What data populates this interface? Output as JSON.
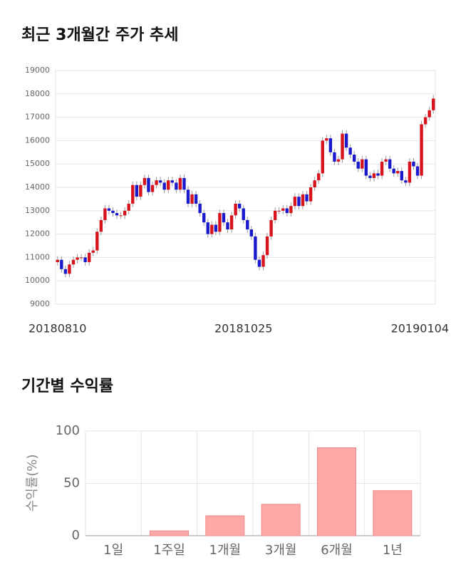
{
  "chart_data": [
    {
      "type": "candlestick",
      "title": "최근 3개월간 주가 추세",
      "categories": [
        "20180810",
        null,
        null,
        null,
        null,
        null,
        null,
        null,
        null,
        null,
        null,
        null,
        null,
        null,
        null,
        null,
        null,
        null,
        null,
        null,
        null,
        null,
        null,
        null,
        null,
        null,
        null,
        null,
        null,
        null,
        null,
        null,
        null,
        null,
        null,
        null,
        null,
        null,
        null,
        null,
        null,
        null,
        null,
        null,
        null,
        null,
        null,
        "20181025",
        null,
        null,
        null,
        null,
        null,
        null,
        null,
        null,
        null,
        null,
        null,
        null,
        null,
        null,
        null,
        null,
        null,
        null,
        null,
        null,
        null,
        null,
        null,
        null,
        null,
        null,
        null,
        null,
        null,
        null,
        null,
        null,
        null,
        null,
        null,
        null,
        null,
        null,
        null,
        null,
        null,
        null,
        null,
        null,
        null,
        null,
        null,
        "20190104"
      ],
      "open": [
        10800,
        10900,
        10500,
        10300,
        10700,
        10900,
        11000,
        11000,
        10800,
        11200,
        11300,
        12100,
        12600,
        13100,
        13000,
        12900,
        12800,
        12800,
        13000,
        13300,
        14100,
        13600,
        14100,
        14400,
        13800,
        14100,
        14300,
        14200,
        13900,
        14300,
        14200,
        13900,
        14400,
        13900,
        13300,
        13700,
        13300,
        12900,
        12500,
        12000,
        12400,
        12100,
        12900,
        12500,
        12200,
        12800,
        13300,
        13100,
        12600,
        12200,
        11900,
        10900,
        10600,
        11100,
        11900,
        12600,
        13000,
        13000,
        13100,
        12900,
        13200,
        13600,
        13200,
        13700,
        13400,
        14000,
        14300,
        14600,
        16000,
        16100,
        15500,
        15100,
        15200,
        16300,
        15700,
        15400,
        15100,
        14800,
        15200,
        14500,
        14400,
        14600,
        14500,
        15100,
        15200,
        14800,
        14600,
        14700,
        14300,
        14200,
        15100,
        14900,
        14500,
        16700,
        17000,
        17300
      ],
      "high": [
        11050,
        11050,
        10650,
        10850,
        11050,
        11150,
        11150,
        11150,
        11350,
        11450,
        12250,
        12750,
        13250,
        13250,
        13150,
        13050,
        12950,
        13150,
        13450,
        14250,
        14250,
        14250,
        14550,
        14550,
        14250,
        14450,
        14450,
        14350,
        14450,
        14450,
        14350,
        14550,
        14550,
        14050,
        13850,
        13850,
        13450,
        13050,
        12650,
        12550,
        12550,
        13050,
        13050,
        12650,
        12950,
        13450,
        13450,
        13250,
        12750,
        12350,
        12050,
        11050,
        11250,
        12050,
        12750,
        13150,
        13150,
        13250,
        13250,
        13350,
        13750,
        13750,
        13850,
        13850,
        14150,
        14450,
        14750,
        16150,
        16250,
        16250,
        15650,
        15350,
        16450,
        16450,
        15850,
        15550,
        15250,
        15350,
        15350,
        14650,
        14750,
        14750,
        15250,
        15350,
        15350,
        14950,
        14850,
        14850,
        14450,
        15250,
        15250,
        15050,
        16850,
        17150,
        17450,
        17950
      ],
      "low": [
        10650,
        10350,
        10150,
        10150,
        10550,
        10750,
        10850,
        10650,
        10650,
        11050,
        11150,
        11950,
        12450,
        12850,
        12750,
        12650,
        12650,
        12650,
        12850,
        13150,
        13450,
        13450,
        13950,
        13650,
        13650,
        13950,
        14050,
        13750,
        13750,
        14050,
        13750,
        13750,
        13750,
        13150,
        13150,
        13150,
        12750,
        12350,
        11850,
        11850,
        11950,
        11950,
        12350,
        12050,
        12050,
        12650,
        12950,
        12450,
        12050,
        11750,
        10750,
        10450,
        10450,
        10950,
        11750,
        12450,
        12850,
        12850,
        12750,
        12750,
        13050,
        13050,
        13050,
        13250,
        13250,
        13850,
        14150,
        14450,
        15850,
        15350,
        14950,
        14950,
        15050,
        15550,
        15250,
        14950,
        14650,
        14650,
        14350,
        14250,
        14250,
        14350,
        14350,
        14950,
        14650,
        14450,
        14450,
        14150,
        14050,
        14050,
        14750,
        14350,
        14350,
        16550,
        16850,
        17150
      ],
      "close": [
        10900,
        10500,
        10300,
        10700,
        10900,
        11000,
        11000,
        10800,
        11200,
        11300,
        12100,
        12600,
        13100,
        13000,
        12900,
        12800,
        12800,
        13000,
        13300,
        14100,
        13600,
        14100,
        14400,
        13800,
        14100,
        14300,
        14200,
        13900,
        14300,
        14200,
        13900,
        14400,
        13900,
        13300,
        13700,
        13300,
        12900,
        12500,
        12000,
        12400,
        12100,
        12900,
        12500,
        12200,
        12800,
        13300,
        13100,
        12600,
        12200,
        11900,
        10900,
        10600,
        11100,
        11900,
        12600,
        13000,
        13000,
        13100,
        12900,
        13200,
        13600,
        13200,
        13700,
        13400,
        14000,
        14300,
        14600,
        16000,
        16100,
        15500,
        15100,
        15200,
        16300,
        15700,
        15400,
        15100,
        14800,
        15200,
        14500,
        14400,
        14600,
        14500,
        15100,
        15200,
        14800,
        14600,
        14700,
        14300,
        14200,
        15100,
        14900,
        14500,
        16700,
        17000,
        17300,
        17800
      ],
      "up_color": "#d7141e",
      "down_color": "#1a1acc",
      "ylim": [
        9000,
        19000
      ],
      "yticks": [
        9000,
        10000,
        11000,
        12000,
        13000,
        14000,
        15000,
        16000,
        17000,
        18000,
        19000
      ],
      "grid": true
    },
    {
      "type": "bar",
      "title": "기간별 수익률",
      "y_label": "수익률(%)",
      "categories": [
        "1일",
        "1주일",
        "1개월",
        "3개월",
        "6개월",
        "1년"
      ],
      "values": [
        0,
        4.6,
        19,
        30,
        84,
        43
      ],
      "color": "#ffa8a8",
      "ylim": [
        0,
        100
      ],
      "yticks": [
        0,
        50,
        100
      ],
      "grid": true
    }
  ]
}
